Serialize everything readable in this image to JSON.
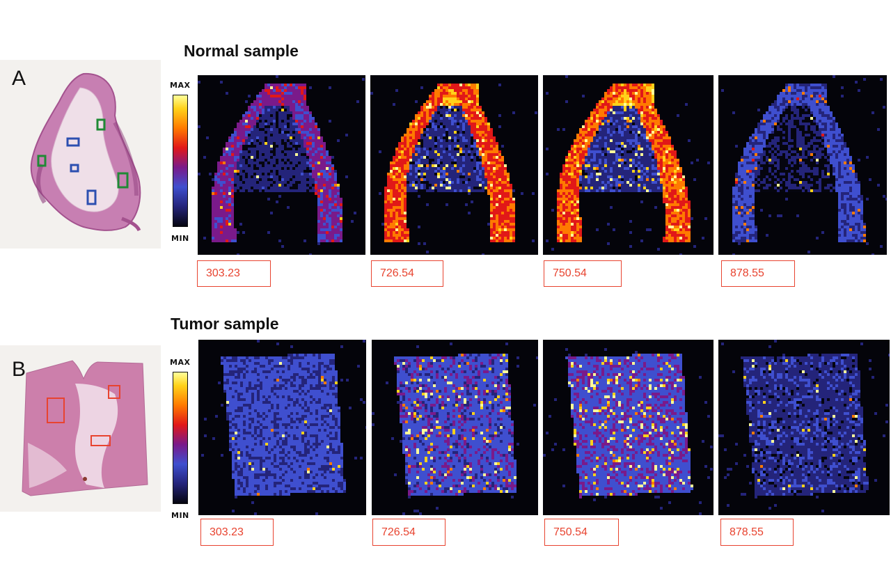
{
  "panels": {
    "normal": {
      "letter": "A",
      "title": "Normal sample",
      "colorbar": {
        "max_label": "MAX",
        "min_label": "MIN"
      },
      "mz_values": [
        "303.23",
        "726.54",
        "750.54",
        "878.55"
      ],
      "region_colors": {
        "green": "#1f8a35",
        "blue": "#2c4fb0"
      }
    },
    "tumor": {
      "letter": "B",
      "title": "Tumor sample",
      "colorbar": {
        "max_label": "MAX",
        "min_label": "MIN"
      },
      "mz_values": [
        "303.23",
        "726.54",
        "750.54",
        "878.55"
      ],
      "region_colors": {
        "red": "#e8432f"
      }
    }
  },
  "colormap": [
    "#05050f",
    "#24247a",
    "#3f4fcf",
    "#7a1a8a",
    "#e11818",
    "#ff7a00",
    "#ffd21a",
    "#ffff9a"
  ],
  "accent": "#e8432f"
}
